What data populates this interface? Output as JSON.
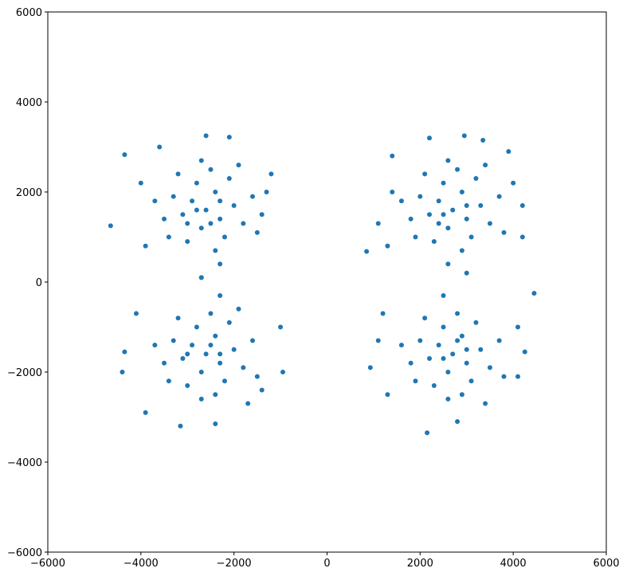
{
  "chart_data": {
    "type": "scatter",
    "color": "#1f77b4",
    "x": [
      -2600,
      -2900,
      -2300,
      -2700,
      -2400,
      -3100,
      -2000,
      -2800,
      -2200,
      -3300,
      -1800,
      -2500,
      -3000,
      -2100,
      -3500,
      -1600,
      -2700,
      -2400,
      -3700,
      -1500,
      -3200,
      -1900,
      -3400,
      -2600,
      -2100,
      -3600,
      -4350,
      -4650,
      -1300,
      -1200,
      -4000,
      -3900,
      -2300,
      -2700,
      -1400,
      -3000,
      -2300,
      -2800,
      -2500,
      2700,
      2400,
      3000,
      2600,
      2900,
      2200,
      3300,
      2500,
      3100,
      2000,
      3500,
      2800,
      2300,
      3200,
      1800,
      3700,
      2600,
      2900,
      1600,
      3800,
      2100,
      3400,
      1900,
      2200,
      2950,
      3350,
      1400,
      4000,
      4200,
      850,
      1100,
      4200,
      2600,
      3000,
      1300,
      2500,
      3000,
      2400,
      3900,
      1400,
      -2600,
      -2900,
      -2300,
      -2700,
      -2400,
      -3100,
      -2000,
      -2800,
      -2200,
      -3300,
      -1800,
      -2500,
      -3000,
      -2100,
      -3500,
      -1600,
      -2700,
      -2400,
      -3700,
      -1500,
      -3200,
      -1900,
      -3400,
      -3150,
      -2400,
      -4400,
      -4350,
      -950,
      -1000,
      -4100,
      -3900,
      -2300,
      -2700,
      -1700,
      -1400,
      -3000,
      -2500,
      -2300,
      2700,
      2400,
      3000,
      2600,
      2900,
      2200,
      3300,
      2500,
      3100,
      2000,
      3500,
      2800,
      2300,
      3200,
      1800,
      3700,
      2600,
      2900,
      1600,
      3800,
      2100,
      3400,
      1900,
      2150,
      2800,
      4450,
      930,
      1200,
      4250,
      4100,
      1100,
      2500,
      4100,
      1300,
      3000,
      2500,
      2800
    ],
    "y": [
      1600,
      1800,
      1400,
      1200,
      2000,
      1500,
      1700,
      2200,
      1000,
      1900,
      1300,
      2500,
      900,
      2300,
      1400,
      1900,
      2700,
      700,
      1800,
      1100,
      2400,
      2600,
      1000,
      3250,
      3220,
      3000,
      2830,
      1250,
      2000,
      2400,
      2200,
      800,
      400,
      100,
      1500,
      1300,
      1800,
      1600,
      1300,
      1600,
      1800,
      1400,
      1200,
      2000,
      1500,
      1700,
      2200,
      1000,
      1900,
      1300,
      2500,
      900,
      2300,
      1400,
      1900,
      2700,
      700,
      1800,
      1100,
      2400,
      2600,
      1000,
      3200,
      3250,
      3150,
      2000,
      2200,
      1700,
      680,
      1300,
      1000,
      400,
      200,
      800,
      1500,
      1700,
      1300,
      2900,
      2800,
      -1600,
      -1400,
      -1800,
      -2000,
      -1200,
      -1700,
      -1500,
      -1000,
      -2200,
      -1300,
      -1900,
      -700,
      -2300,
      -900,
      -1800,
      -1300,
      -2600,
      -2500,
      -1400,
      -2100,
      -800,
      -600,
      -2200,
      -3200,
      -3150,
      -2000,
      -1550,
      -2000,
      -1000,
      -700,
      -2900,
      -300,
      100,
      -2700,
      -2400,
      -1600,
      -1400,
      -1600,
      -1600,
      -1400,
      -1800,
      -2000,
      -1200,
      -1700,
      -1500,
      -1000,
      -2200,
      -1300,
      -1900,
      -700,
      -2300,
      -900,
      -1800,
      -1300,
      -2600,
      -2500,
      -1400,
      -2100,
      -800,
      -2700,
      -2200,
      -3350,
      -3100,
      -250,
      -1900,
      -700,
      -1550,
      -1000,
      -1300,
      -300,
      -2100,
      -2500,
      -1500,
      -1700,
      -1300
    ],
    "xlim": [
      -6000,
      6000
    ],
    "ylim": [
      -6000,
      6000
    ],
    "xticks": [
      {
        "value": -6000,
        "label": "−6000"
      },
      {
        "value": -4000,
        "label": "−4000"
      },
      {
        "value": -2000,
        "label": "−2000"
      },
      0,
      2000,
      4000,
      6000
    ],
    "yticks": [
      {
        "value": -6000,
        "label": "−6000"
      },
      {
        "value": -4000,
        "label": "−4000"
      },
      {
        "value": -2000,
        "label": "−2000"
      },
      0,
      2000,
      4000,
      6000
    ],
    "grid": false
  }
}
